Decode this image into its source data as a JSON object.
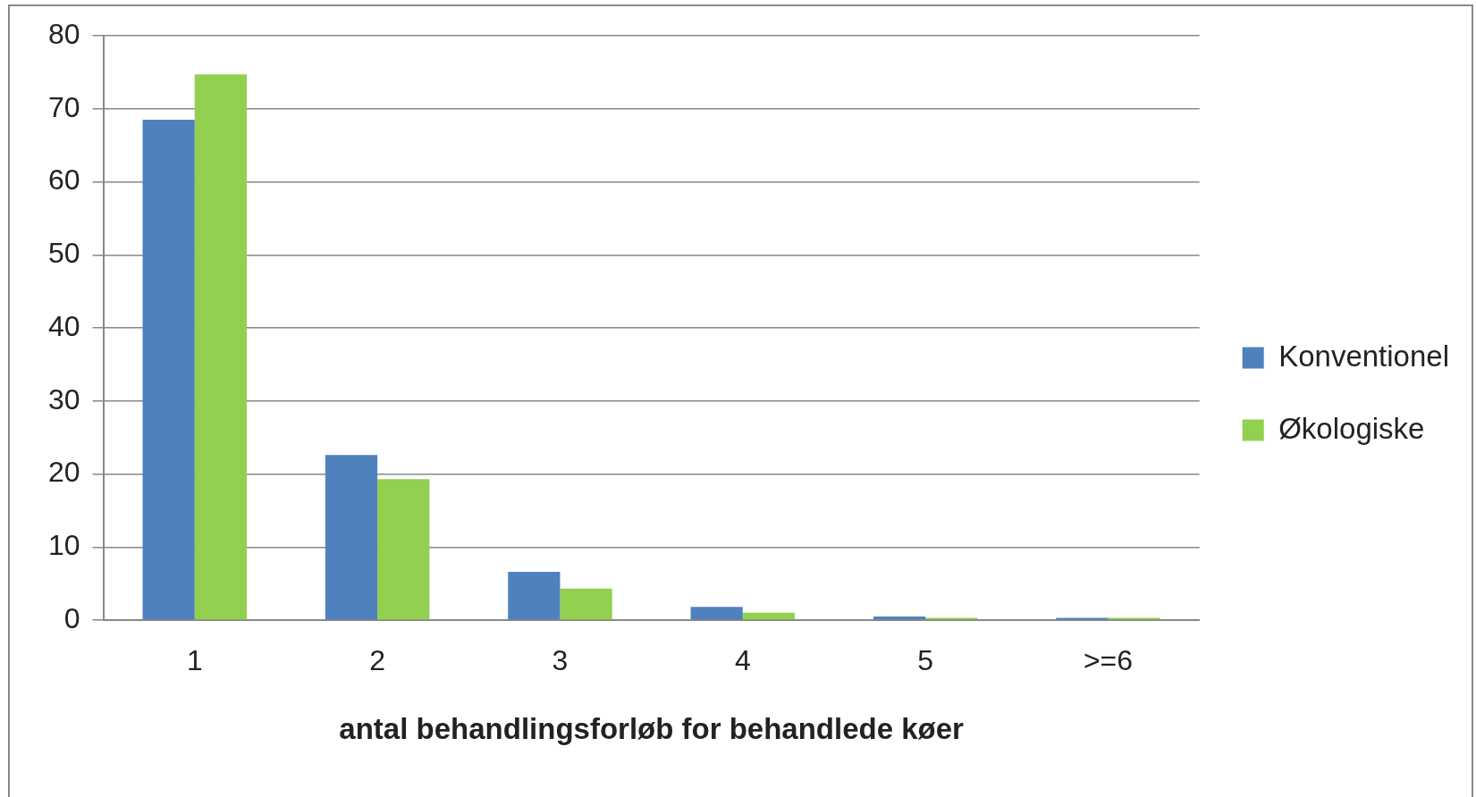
{
  "chart_data": {
    "type": "bar",
    "xlabel": "antal behandlingsforløb for behandlede køer",
    "categories": [
      "1",
      "2",
      "3",
      "4",
      "5",
      ">=6"
    ],
    "series": [
      {
        "name": "Konventionel",
        "color": "#4f81bd",
        "values": [
          68.5,
          22.6,
          6.6,
          1.8,
          0.5,
          0.3
        ]
      },
      {
        "name": "Økologiske",
        "color": "#92d050",
        "values": [
          74.7,
          19.3,
          4.3,
          1.0,
          0.3,
          0.3
        ]
      }
    ],
    "ylim": [
      0,
      80
    ],
    "yticks": [
      0,
      10,
      20,
      30,
      40,
      50,
      60,
      70,
      80
    ],
    "grid": "y",
    "legend": "right"
  }
}
